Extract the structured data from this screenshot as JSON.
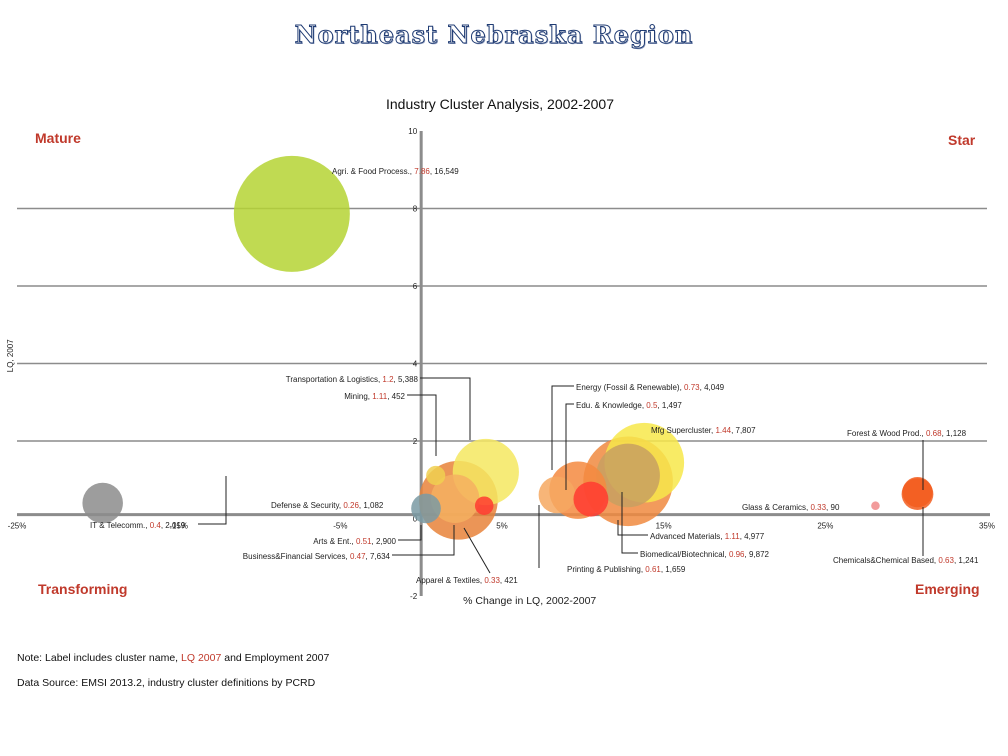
{
  "page_title": "Northeast Nebraska Region",
  "quadrants": {
    "top_left": "Mature",
    "top_right": "Star",
    "bottom_left": "Transforming",
    "bottom_right": "Emerging"
  },
  "note": {
    "prefix": "Note: Label includes cluster name, ",
    "highlight": "LQ 2007",
    "suffix": " and Employment 2007"
  },
  "source": "Data Source: EMSI 2013.2, industry cluster definitions by PCRD",
  "colors": {
    "axis": "#8c8c8c",
    "grid": "#8c8c8c",
    "label_red": "#c0392b",
    "title_outline": "#1f3b73"
  },
  "chart_data": {
    "type": "bubble",
    "title": "Industry Cluster Analysis, 2002-2007",
    "xlabel": "% Change in LQ, 2002-2007",
    "ylabel": "LQ, 2007",
    "xlim": [
      -0.25,
      0.35
    ],
    "ylim": [
      -2,
      10
    ],
    "x_ticks": [
      "-25%",
      "-15%",
      "-5%",
      "5%",
      "15%",
      "25%",
      "35%"
    ],
    "y_ticks": [
      "-2",
      "0",
      "2",
      "4",
      "6",
      "8",
      "10"
    ],
    "grid": true,
    "points": [
      {
        "name": "Agri. & Food Process.",
        "lq": "7.86",
        "emp": "16,549",
        "x": -0.08,
        "y": 7.86,
        "size": 16549,
        "color": "#b5d334"
      },
      {
        "name": "Transportation & Logistics",
        "lq": "1.2",
        "emp": "5,388",
        "x": 0.04,
        "y": 1.2,
        "size": 5388,
        "color": "#f5e860"
      },
      {
        "name": "Mining",
        "lq": "1.11",
        "emp": "452",
        "x": 0.009,
        "y": 1.11,
        "size": 452,
        "color": "#f0d050"
      },
      {
        "name": "Energy (Fossil & Renewable)",
        "lq": "0.73",
        "emp": "4,049",
        "x": 0.097,
        "y": 0.73,
        "size": 4049,
        "color": "#f58a40"
      },
      {
        "name": "Edu. & Knowledge",
        "lq": "0.5",
        "emp": "1,497",
        "x": 0.105,
        "y": 0.5,
        "size": 1497,
        "color": "#ff3b30"
      },
      {
        "name": "Mfg Supercluster",
        "lq": "1.44",
        "emp": "7,807",
        "x": 0.138,
        "y": 1.44,
        "size": 7807,
        "color": "#f7e84a"
      },
      {
        "name": "Forest & Wood Prod.",
        "lq": "0.68",
        "emp": "1,128",
        "x": 0.307,
        "y": 0.68,
        "size": 1128,
        "color": "#f25d1f"
      },
      {
        "name": "Glass & Ceramics",
        "lq": "0.33",
        "emp": "90",
        "x": 0.281,
        "y": 0.33,
        "size": 90,
        "color": "#f08a8a"
      },
      {
        "name": "Defense & Security",
        "lq": "0.26",
        "emp": "1,082",
        "x": 0.003,
        "y": 0.26,
        "size": 1082,
        "color": "#7a9aa3"
      },
      {
        "name": "IT & Telecomm.",
        "lq": "0.4",
        "emp": "2,019",
        "x": -0.197,
        "y": 0.4,
        "size": 2019,
        "color": "#8c8c8c"
      },
      {
        "name": "Arts & Ent.",
        "lq": "0.51",
        "emp": "2,900",
        "x": 0.021,
        "y": 0.51,
        "size": 2900,
        "color": "#f5b060"
      },
      {
        "name": "Business&Financial Services",
        "lq": "0.47",
        "emp": "7,634",
        "x": 0.023,
        "y": 0.47,
        "size": 7634,
        "color": "#e8823a"
      },
      {
        "name": "Advanced Materials",
        "lq": "1.11",
        "emp": "4,977",
        "x": 0.128,
        "y": 1.11,
        "size": 4977,
        "color": "#c8a060"
      },
      {
        "name": "Biomedical/Biotechnical",
        "lq": "0.96",
        "emp": "9,872",
        "x": 0.128,
        "y": 0.96,
        "size": 9872,
        "color": "#f08a40"
      },
      {
        "name": "Printing & Publishing",
        "lq": "0.61",
        "emp": "1,659",
        "x": 0.084,
        "y": 0.61,
        "size": 1659,
        "color": "#f6a860"
      },
      {
        "name": "Apparel & Textiles",
        "lq": "0.33",
        "emp": "421",
        "x": 0.039,
        "y": 0.33,
        "size": 421,
        "color": "#ff3b30"
      },
      {
        "name": "Chemicals&Chemical Based",
        "lq": "0.63",
        "emp": "1,241",
        "x": 0.307,
        "y": 0.63,
        "size": 1241,
        "color": "#f25d1f"
      }
    ]
  }
}
